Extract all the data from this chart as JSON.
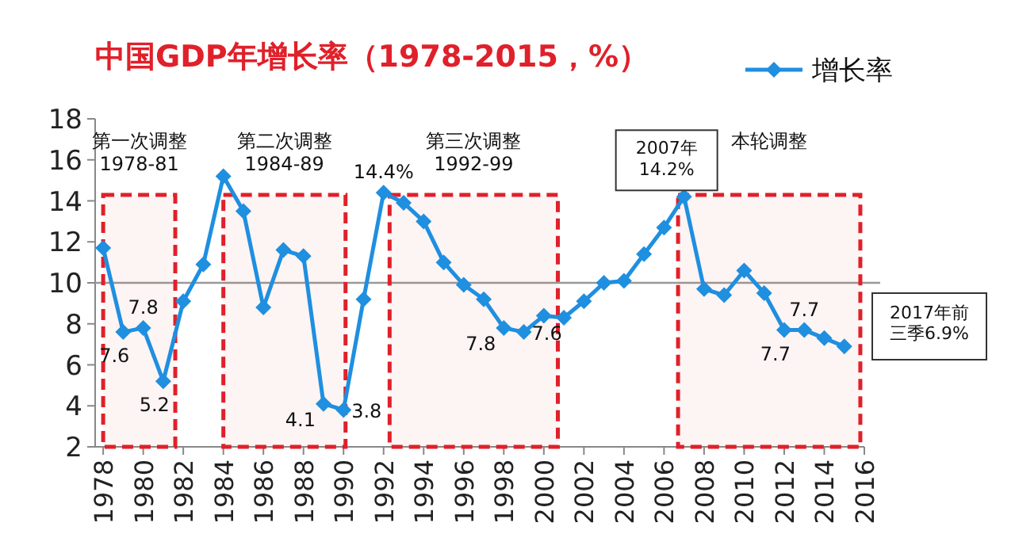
{
  "chart_data": {
    "type": "line",
    "title": "中国GDP年增长率（1978-2015，%）",
    "x": [
      1978,
      1979,
      1980,
      1981,
      1982,
      1983,
      1984,
      1985,
      1986,
      1987,
      1988,
      1989,
      1990,
      1991,
      1992,
      1993,
      1994,
      1995,
      1996,
      1997,
      1998,
      1999,
      2000,
      2001,
      2002,
      2003,
      2004,
      2005,
      2006,
      2007,
      2008,
      2009,
      2010,
      2011,
      2012,
      2013,
      2014,
      2015
    ],
    "series": [
      {
        "name": "增长率",
        "color": "#1f8fe0",
        "values": [
          11.7,
          7.6,
          7.8,
          5.2,
          9.1,
          10.9,
          15.2,
          13.5,
          8.8,
          11.6,
          11.3,
          4.1,
          3.8,
          9.2,
          14.4,
          13.9,
          13.0,
          11.0,
          9.9,
          9.2,
          7.8,
          7.6,
          8.4,
          8.3,
          9.1,
          10.0,
          10.1,
          11.4,
          12.7,
          14.2,
          9.7,
          9.4,
          10.6,
          9.5,
          7.7,
          7.7,
          7.3,
          6.9
        ],
        "value_labels": [
          null,
          "7.6",
          "7.8",
          "5.2",
          null,
          null,
          null,
          null,
          null,
          null,
          null,
          "4.1",
          "3.8",
          null,
          "14.4%",
          null,
          null,
          null,
          null,
          null,
          "7.8",
          "7.6",
          null,
          null,
          null,
          null,
          null,
          null,
          null,
          null,
          null,
          null,
          null,
          null,
          "7.7",
          "7.7",
          null,
          null
        ]
      }
    ],
    "xlim": [
      1977.6,
      2016
    ],
    "xticks": [
      1978,
      1980,
      1982,
      1984,
      1986,
      1988,
      1990,
      1992,
      1994,
      1996,
      1998,
      2000,
      2002,
      2004,
      2006,
      2008,
      2010,
      2012,
      2014,
      2016
    ],
    "ylim": [
      2,
      18
    ],
    "yticks": [
      2,
      4,
      6,
      8,
      10,
      12,
      14,
      16,
      18
    ],
    "ref_lines": [
      {
        "axis": "y",
        "value": 10,
        "color": "#999999",
        "line_style": "solid"
      }
    ],
    "bands": [
      {
        "axis": "x",
        "from": 1978,
        "to": 1981.6,
        "label": "第一次调整\n1978-81",
        "color": "#e0202a"
      },
      {
        "axis": "x",
        "from": 1984,
        "to": 1990.1,
        "label": "第二次调整\n1984-89",
        "color": "#e0202a"
      },
      {
        "axis": "x",
        "from": 1992.3,
        "to": 2000.7,
        "label": "第三次调整\n1992-99",
        "color": "#e0202a"
      },
      {
        "axis": "x",
        "from": 2006.7,
        "to": 2015.8,
        "label": "本轮调整",
        "color": "#e0202a"
      }
    ],
    "annotations": [
      {
        "text": "2007年\n14.2%",
        "x": 2007,
        "y": 14.2
      },
      "2017年前三季6.9%"
    ],
    "marker": "diamond",
    "line_style": "solid",
    "legend": "top right",
    "grid": false
  }
}
